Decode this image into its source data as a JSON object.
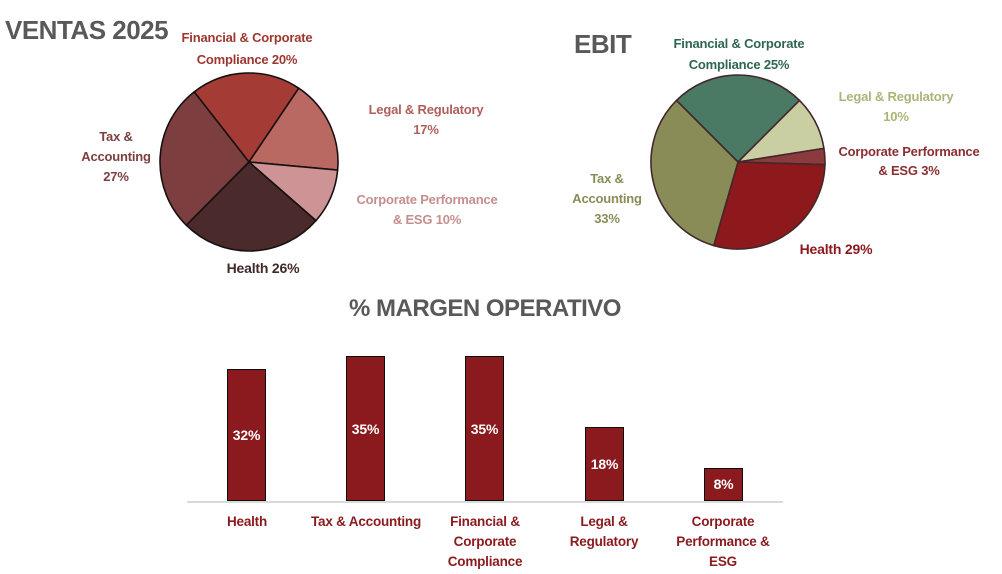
{
  "chart_data": [
    {
      "id": "ventas",
      "type": "pie",
      "title": "VENTAS 2025",
      "title_color": "#595959",
      "start_angle": -38,
      "stroke": "#171010",
      "legend_position": "outside-labels",
      "slices": [
        {
          "category": "Financial & Corporate Compliance",
          "value": 20,
          "color": "#A43C35",
          "label": "Financial & Corporate\nCompliance 20%",
          "label_color": "#9E372F"
        },
        {
          "category": "Legal & Regulatory",
          "value": 17,
          "color": "#BA6862",
          "label": "Legal & Regulatory\n17%",
          "label_color": "#B05E5B"
        },
        {
          "category": "Corporate Performance & ESG",
          "value": 10,
          "color": "#CE9394",
          "label": "Corporate Performance\n& ESG 10%",
          "label_color": "#C68E8D"
        },
        {
          "category": "Health",
          "value": 26,
          "color": "#4A2A2B",
          "label": "Health 26%",
          "label_color": "#42282A"
        },
        {
          "category": "Tax & Accounting",
          "value": 27,
          "color": "#7C3E3E",
          "label": "Tax &\nAccounting\n27%",
          "label_color": "#7B4040"
        }
      ]
    },
    {
      "id": "ebit",
      "type": "pie",
      "title": "EBIT",
      "title_color": "#595959",
      "start_angle": -45,
      "stroke": "#42282A",
      "legend_position": "outside-labels",
      "slices": [
        {
          "category": "Financial & Corporate Compliance",
          "value": 25,
          "color": "#4A7A63",
          "label": "Financial & Corporate\nCompliance 25%",
          "label_color": "#2F6650"
        },
        {
          "category": "Legal & Regulatory",
          "value": 10,
          "color": "#CACEA3",
          "label": "Legal & Regulatory\n10%",
          "label_color": "#AEB377"
        },
        {
          "category": "Corporate Performance & ESG",
          "value": 3,
          "color": "#8B3A3D",
          "label": "Corporate Performance\n& ESG 3%",
          "label_color": "#8B2E31"
        },
        {
          "category": "Health",
          "value": 29,
          "color": "#8D191D",
          "label": "Health 29%",
          "label_color": "#8D191D"
        },
        {
          "category": "Tax & Accounting",
          "value": 33,
          "color": "#8A8C58",
          "label": "Tax &\nAccounting\n33%",
          "label_color": "#8A8C58"
        }
      ]
    },
    {
      "id": "margen_operativo",
      "type": "bar",
      "title": "% MARGEN OPERATIVO",
      "title_color": "#595959",
      "bar_color": "#8B1A1E",
      "bar_border_color": "#0D0D0D",
      "value_label_color": "#FFFFFF",
      "category_label_color": "#8B1A1E",
      "axis_color": "#D9D9D9",
      "grid": false,
      "ylim": [
        0,
        37
      ],
      "bars": [
        {
          "category": "Health",
          "category_label": "Health",
          "value": 32,
          "value_label": "32%"
        },
        {
          "category": "Tax & Accounting",
          "category_label": "Tax & Accounting",
          "value": 35,
          "value_label": "35%"
        },
        {
          "category": "Financial & Corporate Compliance",
          "category_label": "Financial &\nCorporate\nCompliance",
          "value": 35,
          "value_label": "35%"
        },
        {
          "category": "Legal & Regulatory",
          "category_label": "Legal &\nRegulatory",
          "value": 18,
          "value_label": "18%"
        },
        {
          "category": "Corporate Performance & ESG",
          "category_label": "Corporate\nPerformance &\nESG",
          "value": 8,
          "value_label": "8%"
        }
      ]
    }
  ]
}
